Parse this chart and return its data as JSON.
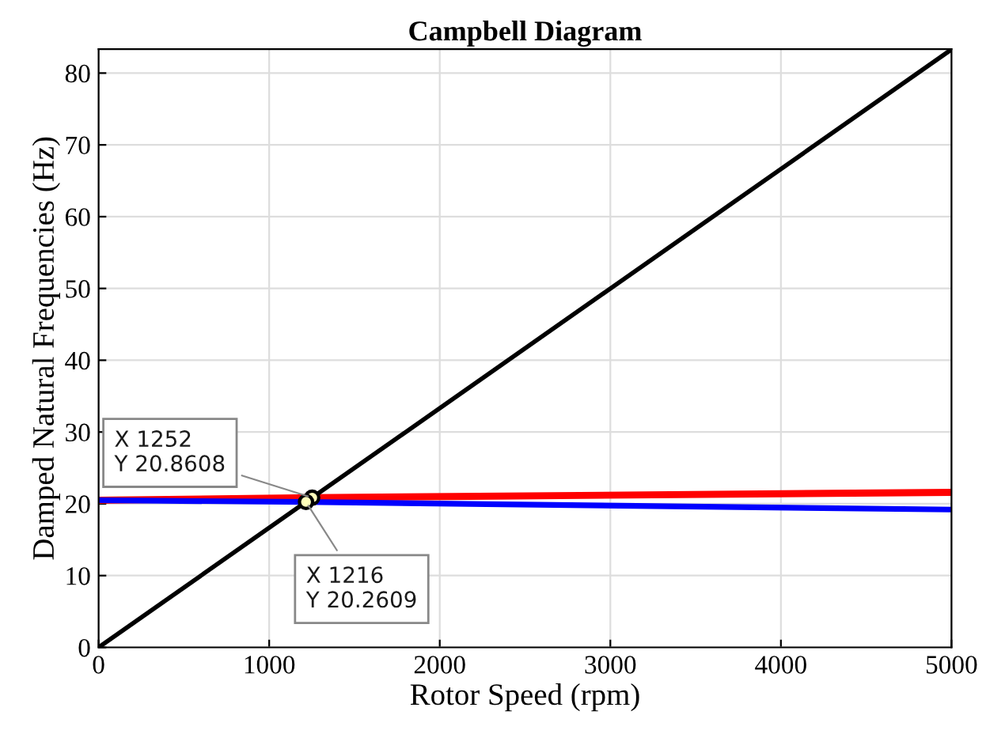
{
  "chart_data": {
    "type": "line",
    "title": "Campbell Diagram",
    "xlabel": "Rotor Speed (rpm)",
    "ylabel": "Damped Natural Frequencies (Hz)",
    "series": [
      {
        "color": "#ff0000",
        "x": [
          0,
          1252,
          5000
        ],
        "values": [
          20.5,
          20.86,
          21.6
        ]
      },
      {
        "color": "#0000ff",
        "x": [
          0,
          1216,
          5000
        ],
        "values": [
          20.5,
          20.26,
          19.2
        ]
      },
      {
        "color": "#000000",
        "x": [
          0,
          5000
        ],
        "values": [
          0,
          83.3
        ]
      }
    ],
    "annotations": [
      {
        "text": "X 1252\nY 20.8608",
        "x": 1252,
        "y": 20.8608
      },
      {
        "text": "X 1216\nY 20.2609",
        "x": 1216,
        "y": 20.2609
      }
    ],
    "xlim": [
      0,
      5000
    ],
    "xticks": [
      0,
      1000,
      2000,
      3000,
      4000,
      5000
    ],
    "ylim": [
      0,
      83.33
    ],
    "yticks": [
      0,
      10,
      20,
      30,
      40,
      50,
      60,
      70,
      80
    ],
    "grid": true,
    "line_style": "solid",
    "marker": "none"
  }
}
